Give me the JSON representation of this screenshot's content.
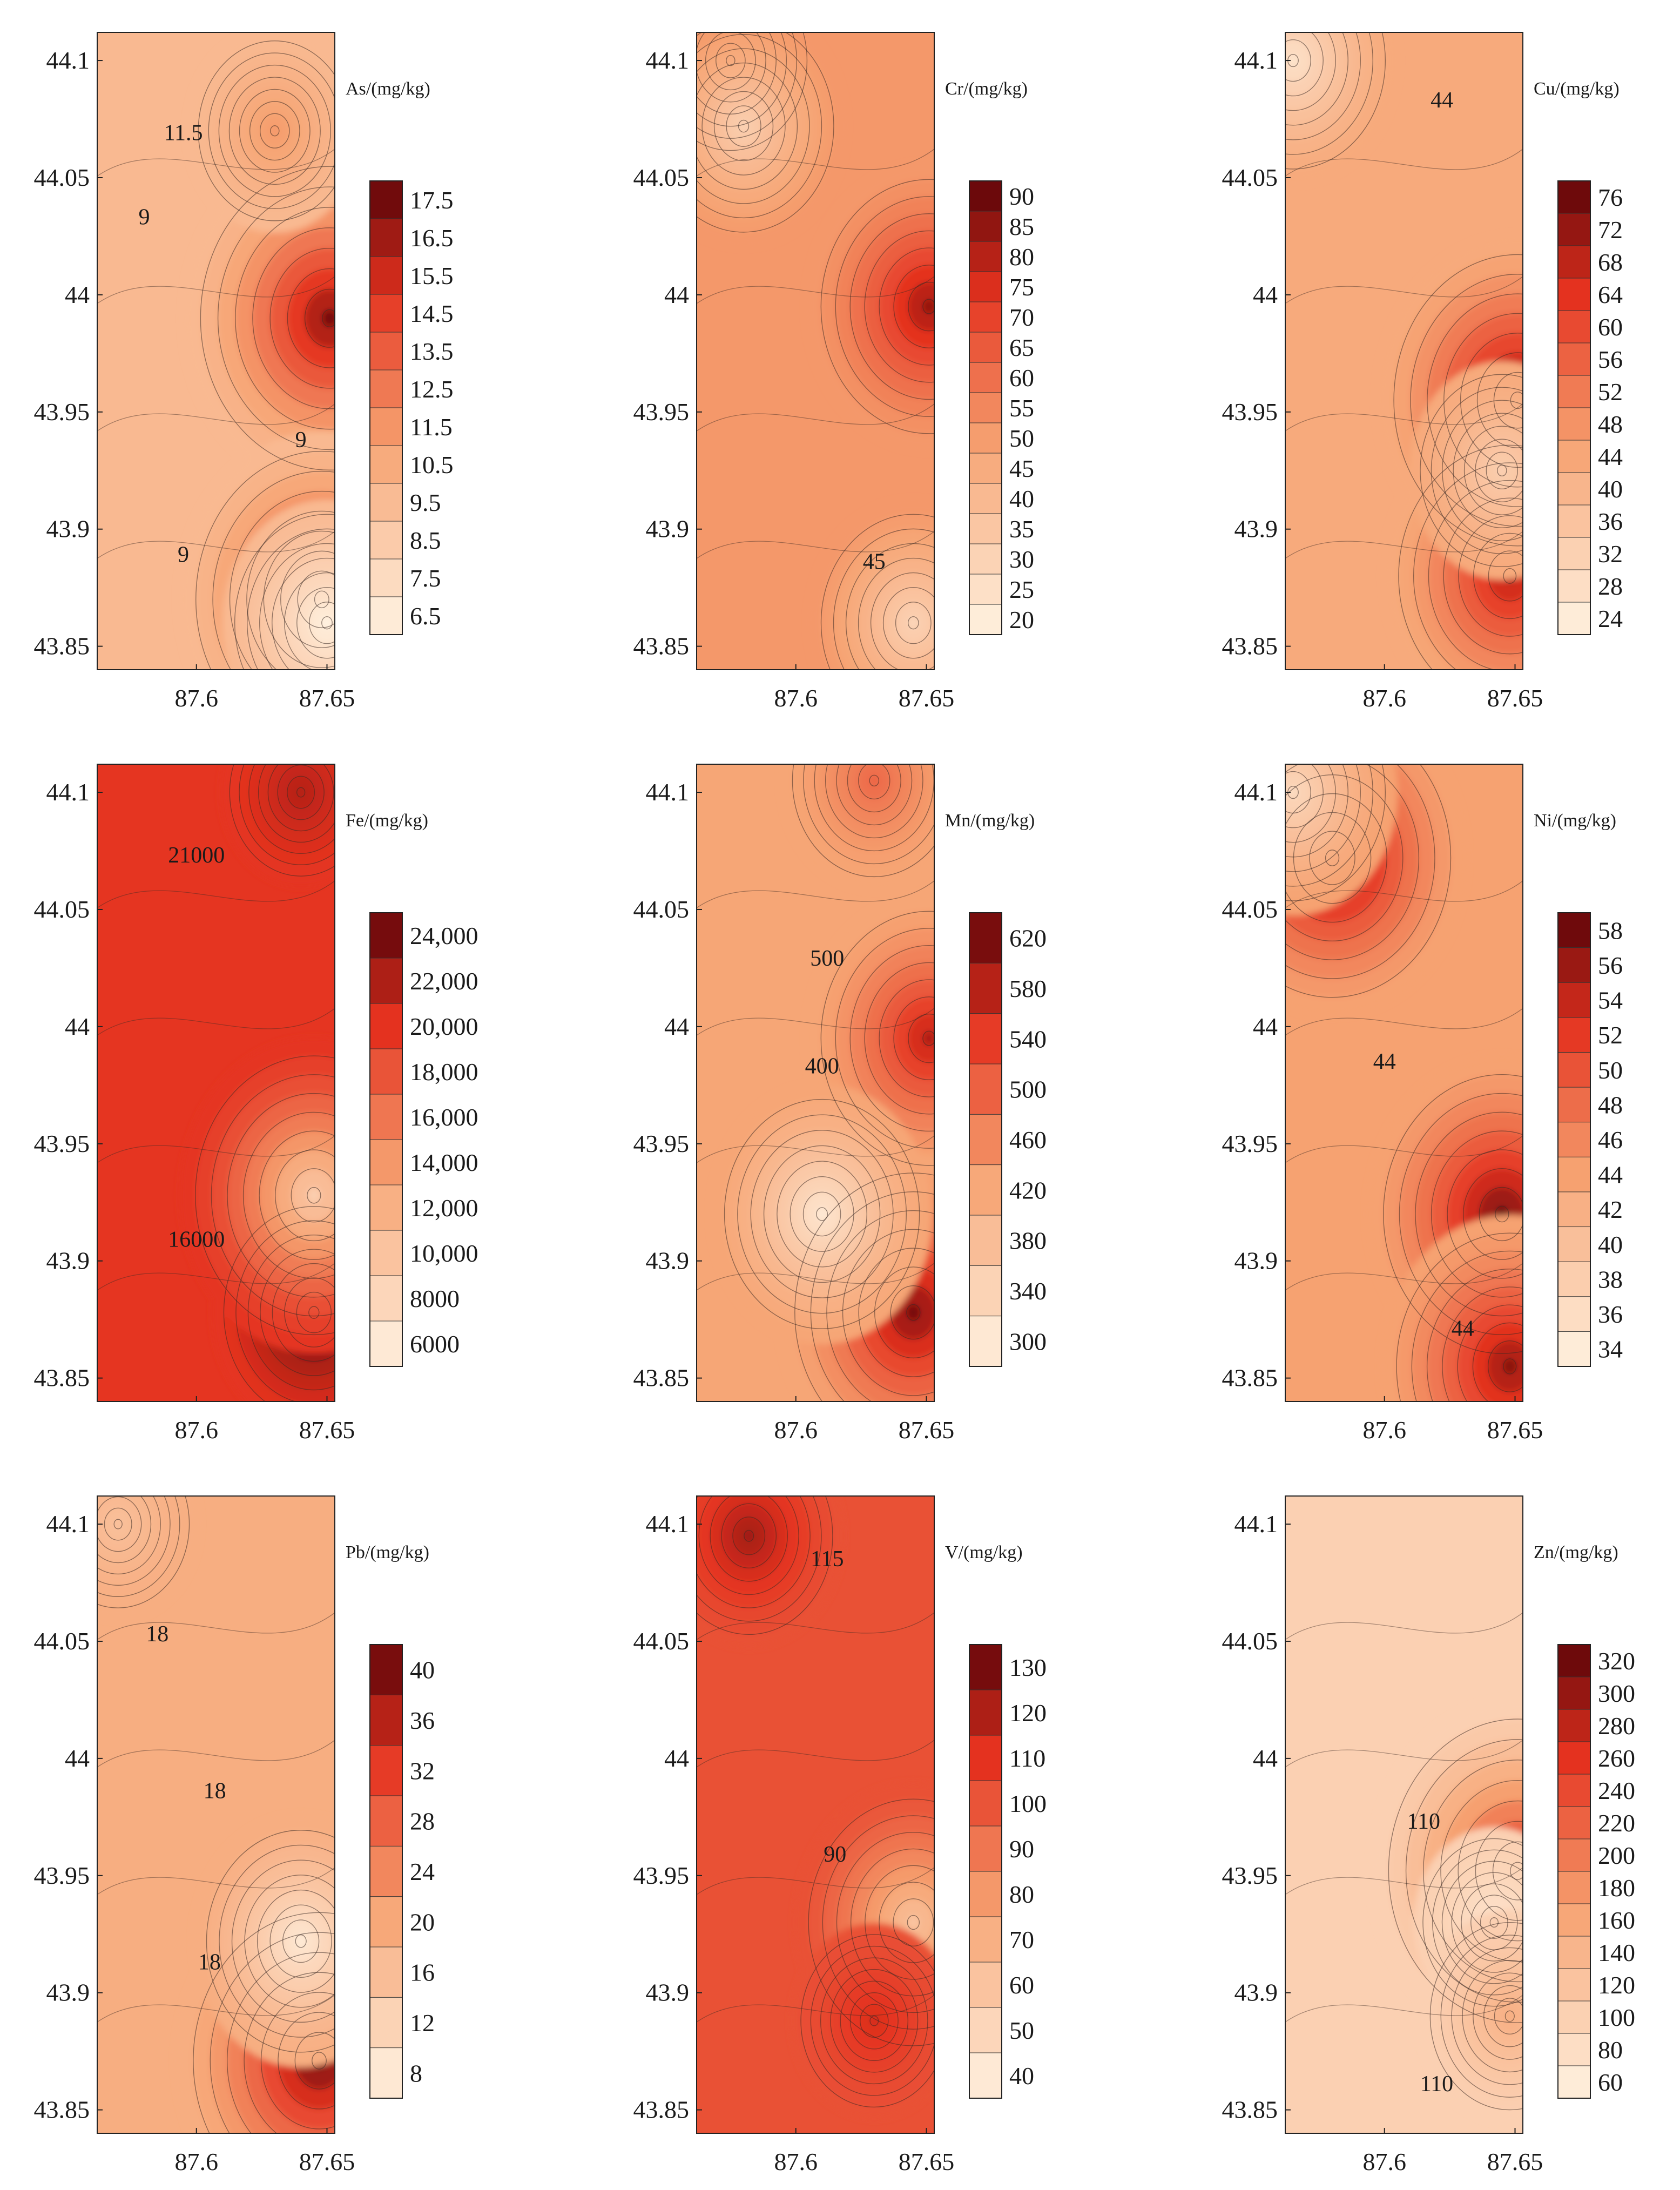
{
  "figure": {
    "description_free": true,
    "colors": {
      "low": "#fff3e2",
      "mid": "#f6a271",
      "high": "#e4321f",
      "peak": "#5a0308",
      "contour": "#3b2a24"
    }
  },
  "chart_data": [
    {
      "type": "heatmap",
      "element": "As",
      "unit_label": "As/(mg/kg)",
      "xticks": [
        "87.6",
        "87.65"
      ],
      "yticks": [
        "44.1",
        "44.05",
        "44",
        "43.95",
        "43.9",
        "43.85"
      ],
      "xlim": [
        87.562,
        87.653
      ],
      "ylim": [
        43.84,
        44.112
      ],
      "colorbar_ticks": [
        "17.5",
        "16.5",
        "15.5",
        "14.5",
        "13.5",
        "12.5",
        "11.5",
        "10.5",
        "9.5",
        "8.5",
        "7.5",
        "6.5"
      ],
      "vmin": 6.5,
      "vmax": 17.5,
      "base": 0.3,
      "hotspots": [
        [
          87.651,
          43.99,
          0.65
        ],
        [
          87.648,
          43.87,
          0.62
        ],
        [
          87.63,
          44.07,
          0.15
        ],
        [
          87.65,
          43.86,
          -0.3
        ]
      ],
      "contour_labels": [
        {
          "text": "11.5",
          "x": 87.595,
          "y": 44.066
        },
        {
          "text": "9",
          "x": 87.58,
          "y": 44.03
        },
        {
          "text": "9",
          "x": 87.64,
          "y": 43.935
        },
        {
          "text": "9",
          "x": 87.595,
          "y": 43.886
        }
      ]
    },
    {
      "type": "heatmap",
      "element": "Cr",
      "unit_label": "Cr/(mg/kg)",
      "xticks": [
        "87.6",
        "87.65"
      ],
      "yticks": [
        "44.1",
        "44.05",
        "44",
        "43.95",
        "43.9",
        "43.85"
      ],
      "xlim": [
        87.562,
        87.653
      ],
      "ylim": [
        43.84,
        44.112
      ],
      "colorbar_ticks": [
        "90",
        "85",
        "80",
        "75",
        "70",
        "65",
        "60",
        "55",
        "50",
        "45",
        "40",
        "35",
        "30",
        "25",
        "20"
      ],
      "vmin": 20,
      "vmax": 90,
      "base": 0.45,
      "hotspots": [
        [
          87.575,
          44.1,
          0.15
        ],
        [
          87.651,
          43.995,
          0.45
        ],
        [
          87.645,
          43.86,
          -0.3
        ],
        [
          87.58,
          44.072,
          -0.28
        ]
      ],
      "contour_labels": [
        {
          "text": "45",
          "x": 87.63,
          "y": 43.883
        }
      ]
    },
    {
      "type": "heatmap",
      "element": "Cu",
      "unit_label": "Cu/(mg/kg)",
      "xticks": [
        "87.6",
        "87.65"
      ],
      "yticks": [
        "44.1",
        "44.05",
        "44",
        "43.95",
        "43.9",
        "43.85"
      ],
      "xlim": [
        87.562,
        87.653
      ],
      "ylim": [
        43.84,
        44.112
      ],
      "colorbar_ticks": [
        "76",
        "72",
        "68",
        "64",
        "60",
        "56",
        "52",
        "48",
        "44",
        "40",
        "36",
        "32",
        "28",
        "24"
      ],
      "vmin": 24,
      "vmax": 76,
      "base": 0.38,
      "hotspots": [
        [
          87.651,
          43.955,
          0.6
        ],
        [
          87.648,
          43.88,
          0.48
        ],
        [
          87.565,
          44.1,
          -0.3
        ],
        [
          87.645,
          43.925,
          -0.2
        ]
      ],
      "contour_labels": [
        {
          "text": "44",
          "x": 87.622,
          "y": 44.08
        }
      ]
    },
    {
      "type": "heatmap",
      "element": "Fe",
      "unit_label": "Fe/(mg/kg)",
      "xticks": [
        "87.6",
        "87.65"
      ],
      "yticks": [
        "44.1",
        "44.05",
        "44",
        "43.95",
        "43.9",
        "43.85"
      ],
      "xlim": [
        87.562,
        87.653
      ],
      "ylim": [
        43.84,
        44.112
      ],
      "colorbar_ticks": [
        "24,000",
        "22,000",
        "20,000",
        "18,000",
        "16,000",
        "14,000",
        "12,000",
        "10,000",
        "8000",
        "6000"
      ],
      "vmin": 6000,
      "vmax": 24000,
      "base": 0.74,
      "hotspots": [
        [
          87.645,
          43.878,
          0.28
        ],
        [
          87.64,
          44.1,
          0.1
        ],
        [
          87.645,
          43.928,
          -0.55
        ]
      ],
      "contour_labels": [
        {
          "text": "21000",
          "x": 87.6,
          "y": 44.07
        },
        {
          "text": "16000",
          "x": 87.6,
          "y": 43.906
        }
      ]
    },
    {
      "type": "heatmap",
      "element": "Mn",
      "unit_label": "Mn/(mg/kg)",
      "xticks": [
        "87.6",
        "87.65"
      ],
      "yticks": [
        "44.1",
        "44.05",
        "44",
        "43.95",
        "43.9",
        "43.85"
      ],
      "xlim": [
        87.562,
        87.653
      ],
      "ylim": [
        43.84,
        44.112
      ],
      "colorbar_ticks": [
        "620",
        "580",
        "540",
        "500",
        "460",
        "420",
        "380",
        "340",
        "300"
      ],
      "vmin": 300,
      "vmax": 620,
      "base": 0.4,
      "hotspots": [
        [
          87.651,
          43.995,
          0.45
        ],
        [
          87.645,
          43.878,
          0.55
        ],
        [
          87.63,
          44.105,
          0.2
        ],
        [
          87.61,
          43.92,
          -0.35
        ]
      ],
      "contour_labels": [
        {
          "text": "500",
          "x": 87.612,
          "y": 44.026
        },
        {
          "text": "400",
          "x": 87.61,
          "y": 43.98
        }
      ]
    },
    {
      "type": "heatmap",
      "element": "Ni",
      "unit_label": "Ni/(mg/kg)",
      "xticks": [
        "87.6",
        "87.65"
      ],
      "yticks": [
        "44.1",
        "44.05",
        "44",
        "43.95",
        "43.9",
        "43.85"
      ],
      "xlim": [
        87.562,
        87.653
      ],
      "ylim": [
        43.84,
        44.112
      ],
      "colorbar_ticks": [
        "58",
        "56",
        "54",
        "52",
        "50",
        "48",
        "46",
        "44",
        "42",
        "40",
        "38",
        "36",
        "34"
      ],
      "vmin": 34,
      "vmax": 58,
      "base": 0.42,
      "hotspots": [
        [
          87.58,
          44.072,
          0.55
        ],
        [
          87.645,
          43.92,
          0.55
        ],
        [
          87.648,
          43.855,
          0.5
        ],
        [
          87.565,
          44.1,
          -0.3
        ]
      ],
      "contour_labels": [
        {
          "text": "44",
          "x": 87.6,
          "y": 43.982
        },
        {
          "text": "44",
          "x": 87.63,
          "y": 43.868
        }
      ]
    },
    {
      "type": "heatmap",
      "element": "Pb",
      "unit_label": "Pb/(mg/kg)",
      "xticks": [
        "87.6",
        "87.65"
      ],
      "yticks": [
        "44.1",
        "44.05",
        "44",
        "43.95",
        "43.9",
        "43.85"
      ],
      "xlim": [
        87.562,
        87.653
      ],
      "ylim": [
        43.84,
        44.112
      ],
      "colorbar_ticks": [
        "40",
        "36",
        "32",
        "28",
        "24",
        "20",
        "16",
        "12",
        "8"
      ],
      "vmin": 8,
      "vmax": 40,
      "base": 0.36,
      "hotspots": [
        [
          87.647,
          43.871,
          0.62
        ],
        [
          87.64,
          43.922,
          -0.32
        ],
        [
          87.57,
          44.1,
          -0.1
        ]
      ],
      "contour_labels": [
        {
          "text": "18",
          "x": 87.585,
          "y": 44.05
        },
        {
          "text": "18",
          "x": 87.607,
          "y": 43.983
        },
        {
          "text": "18",
          "x": 87.605,
          "y": 43.91
        }
      ]
    },
    {
      "type": "heatmap",
      "element": "V",
      "unit_label": "V/(mg/kg)",
      "xticks": [
        "87.6",
        "87.65"
      ],
      "yticks": [
        "44.1",
        "44.05",
        "44",
        "43.95",
        "43.9",
        "43.85"
      ],
      "xlim": [
        87.562,
        87.653
      ],
      "ylim": [
        43.84,
        44.112
      ],
      "colorbar_ticks": [
        "130",
        "120",
        "110",
        "100",
        "90",
        "80",
        "70",
        "60",
        "50",
        "40"
      ],
      "vmin": 40,
      "vmax": 135,
      "base": 0.66,
      "hotspots": [
        [
          87.582,
          44.095,
          0.22
        ],
        [
          87.645,
          43.93,
          -0.42
        ],
        [
          87.63,
          43.888,
          0.12
        ]
      ],
      "contour_labels": [
        {
          "text": "115",
          "x": 87.612,
          "y": 44.082
        },
        {
          "text": "90",
          "x": 87.615,
          "y": 43.956
        }
      ]
    },
    {
      "type": "heatmap",
      "element": "Zn",
      "unit_label": "Zn/(mg/kg)",
      "xticks": [
        "87.6",
        "87.65"
      ],
      "yticks": [
        "44.1",
        "44.05",
        "44",
        "43.95",
        "43.9",
        "43.85"
      ],
      "xlim": [
        87.562,
        87.653
      ],
      "ylim": [
        43.84,
        44.112
      ],
      "colorbar_ticks": [
        "320",
        "300",
        "280",
        "260",
        "240",
        "220",
        "200",
        "180",
        "160",
        "140",
        "120",
        "100",
        "80",
        "60"
      ],
      "vmin": 60,
      "vmax": 320,
      "base": 0.18,
      "hotspots": [
        [
          87.651,
          43.952,
          0.65
        ],
        [
          87.642,
          43.93,
          -0.1
        ],
        [
          87.648,
          43.89,
          0.18
        ]
      ],
      "contour_labels": [
        {
          "text": "110",
          "x": 87.615,
          "y": 43.97
        },
        {
          "text": "110",
          "x": 87.62,
          "y": 43.858
        }
      ]
    }
  ]
}
